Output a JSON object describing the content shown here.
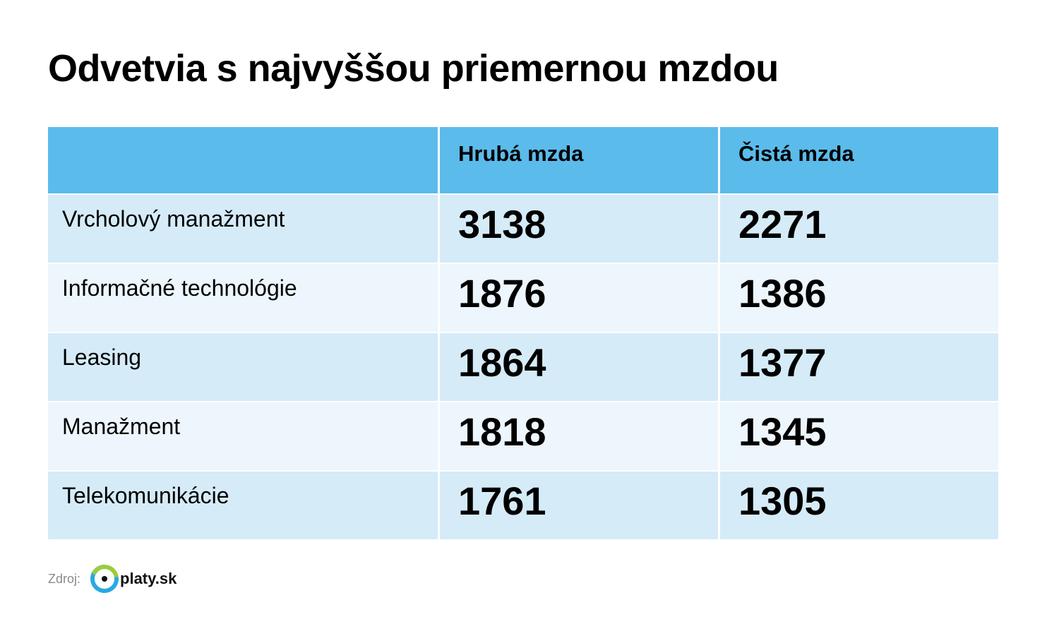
{
  "title": "Odvetvia s najvyššou priemernou mzdou",
  "table": {
    "headers": [
      "",
      "Hrubá mzda",
      "Čistá mzda"
    ],
    "rows": [
      {
        "sector": "Vrcholový manažment",
        "gross": "3138",
        "net": "2271"
      },
      {
        "sector": "Informačné technológie",
        "gross": "1876",
        "net": "1386"
      },
      {
        "sector": "Leasing",
        "gross": "1864",
        "net": "1377"
      },
      {
        "sector": "Manažment",
        "gross": "1818",
        "net": "1345"
      },
      {
        "sector": "Telekomunikácie",
        "gross": "1761",
        "net": "1305"
      }
    ]
  },
  "source": {
    "label": "Zdroj:",
    "logo_text": "platy.sk"
  },
  "colors": {
    "header": "#5bbbeb",
    "row_dark": "#d5ebf8",
    "row_light": "#ecf6fc",
    "logo_green": "#9ccc3a",
    "logo_blue": "#29a9e1"
  },
  "icons": {
    "logo": "platy-sk-ring-icon"
  }
}
